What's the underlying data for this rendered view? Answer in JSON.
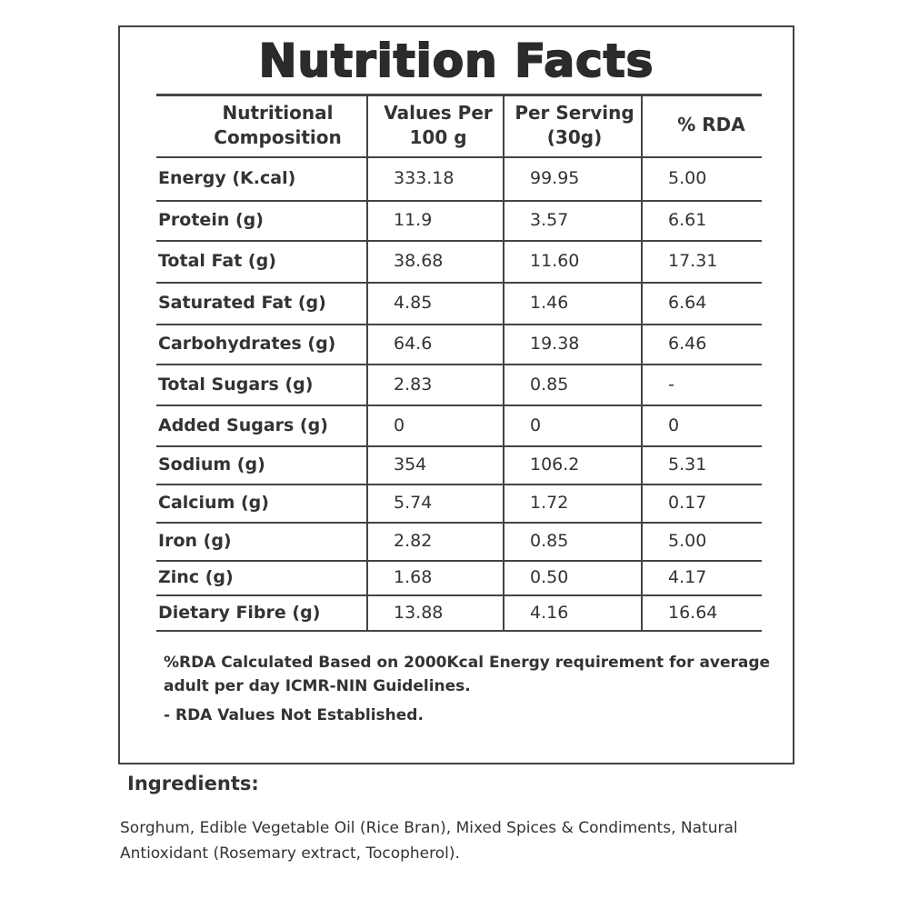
{
  "title": "Nutrition Facts",
  "table": {
    "header": [
      "Nutritional Composition",
      "Values Per 100 g",
      "Per Serving (30g)",
      "% RDA"
    ],
    "rows": [
      [
        "Energy (K.cal)",
        "333.18",
        "99.95",
        "5.00"
      ],
      [
        "Protein (g)",
        "11.9",
        "3.57",
        "6.61"
      ],
      [
        "Total Fat (g)",
        "38.68",
        "11.60",
        "17.31"
      ],
      [
        "Saturated Fat (g)",
        "4.85",
        "1.46",
        "6.64"
      ],
      [
        "Carbohydrates (g)",
        "64.6",
        "19.38",
        "6.46"
      ],
      [
        "Total Sugars (g)",
        "2.83",
        "0.85",
        "-"
      ],
      [
        "Added Sugars (g)",
        "0",
        "0",
        "0"
      ],
      [
        "Sodium (g)",
        "354",
        "106.2",
        "5.31"
      ],
      [
        "Calcium (g)",
        "5.74",
        "1.72",
        "0.17"
      ],
      [
        "Iron (g)",
        "2.82",
        "0.85",
        "5.00"
      ],
      [
        "Zinc (g)",
        "1.68",
        "0.50",
        "4.17"
      ],
      [
        "Dietary Fibre (g)",
        "13.88",
        "4.16",
        "16.64"
      ]
    ]
  },
  "notes": [
    "%RDA Calculated Based on 2000Kcal Energy requirement for average adult per day ICMR-NIN Guidelines.",
    "- RDA Values Not Established."
  ],
  "ingredients": {
    "heading": "Ingredients:",
    "text": "Sorghum, Edible Vegetable Oil (Rice Bran), Mixed Spices & Condiments, Natural Antioxidant (Rosemary extract, Tocopherol)."
  }
}
